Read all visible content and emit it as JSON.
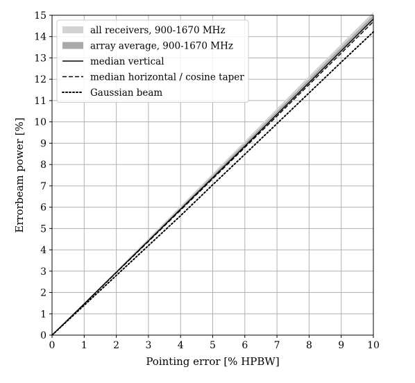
{
  "chart_data": {
    "type": "line",
    "xlabel": "Pointing error [% HPBW]",
    "ylabel": "Errorbeam power [%]",
    "xlim": [
      0,
      10
    ],
    "ylim": [
      0,
      15
    ],
    "xticks": [
      "0",
      "1",
      "2",
      "3",
      "4",
      "5",
      "6",
      "7",
      "8",
      "9",
      "10"
    ],
    "yticks": [
      "0",
      "1",
      "2",
      "3",
      "4",
      "5",
      "6",
      "7",
      "8",
      "9",
      "10",
      "11",
      "12",
      "13",
      "14",
      "15"
    ],
    "grid": true,
    "legend_position": "top-left",
    "series": [
      {
        "name": "all receivers, 900-1670 MHz",
        "style": "band",
        "color": "#d3d3d3",
        "x": [
          0,
          2,
          4,
          6,
          8,
          10
        ],
        "lower": [
          0,
          2.9,
          5.82,
          8.78,
          11.75,
          14.7
        ],
        "upper": [
          0,
          3.02,
          6.05,
          9.1,
          12.15,
          15.15
        ]
      },
      {
        "name": "array average, 900-1670 MHz",
        "style": "band",
        "color": "#a9a9a9",
        "x": [
          0,
          2,
          4,
          6,
          8,
          10
        ],
        "lower": [
          0,
          2.93,
          5.88,
          8.85,
          11.83,
          14.8
        ],
        "upper": [
          0,
          2.98,
          5.98,
          8.99,
          12.0,
          15.0
        ]
      },
      {
        "name": "median vertical",
        "style": "solid",
        "color": "#000000",
        "x": [
          0,
          1,
          2,
          3,
          4,
          5,
          6,
          7,
          8,
          9,
          10
        ],
        "y": [
          0,
          1.47,
          2.95,
          4.42,
          5.9,
          7.38,
          8.86,
          10.35,
          11.84,
          13.33,
          14.82
        ]
      },
      {
        "name": "median horizontal / cosine taper",
        "style": "dashed",
        "color": "#000000",
        "x": [
          0,
          1,
          2,
          3,
          4,
          5,
          6,
          7,
          8,
          9,
          10
        ],
        "y": [
          0,
          1.46,
          2.93,
          4.39,
          5.86,
          7.33,
          8.8,
          10.27,
          11.75,
          13.22,
          14.7
        ]
      },
      {
        "name": "Gaussian beam",
        "style": "dotted",
        "color": "#000000",
        "x": [
          0,
          1,
          2,
          3,
          4,
          5,
          6,
          7,
          8,
          9,
          10
        ],
        "y": [
          0,
          1.4,
          2.8,
          4.2,
          5.6,
          7.05,
          8.48,
          9.92,
          11.36,
          12.8,
          14.22
        ]
      }
    ]
  }
}
